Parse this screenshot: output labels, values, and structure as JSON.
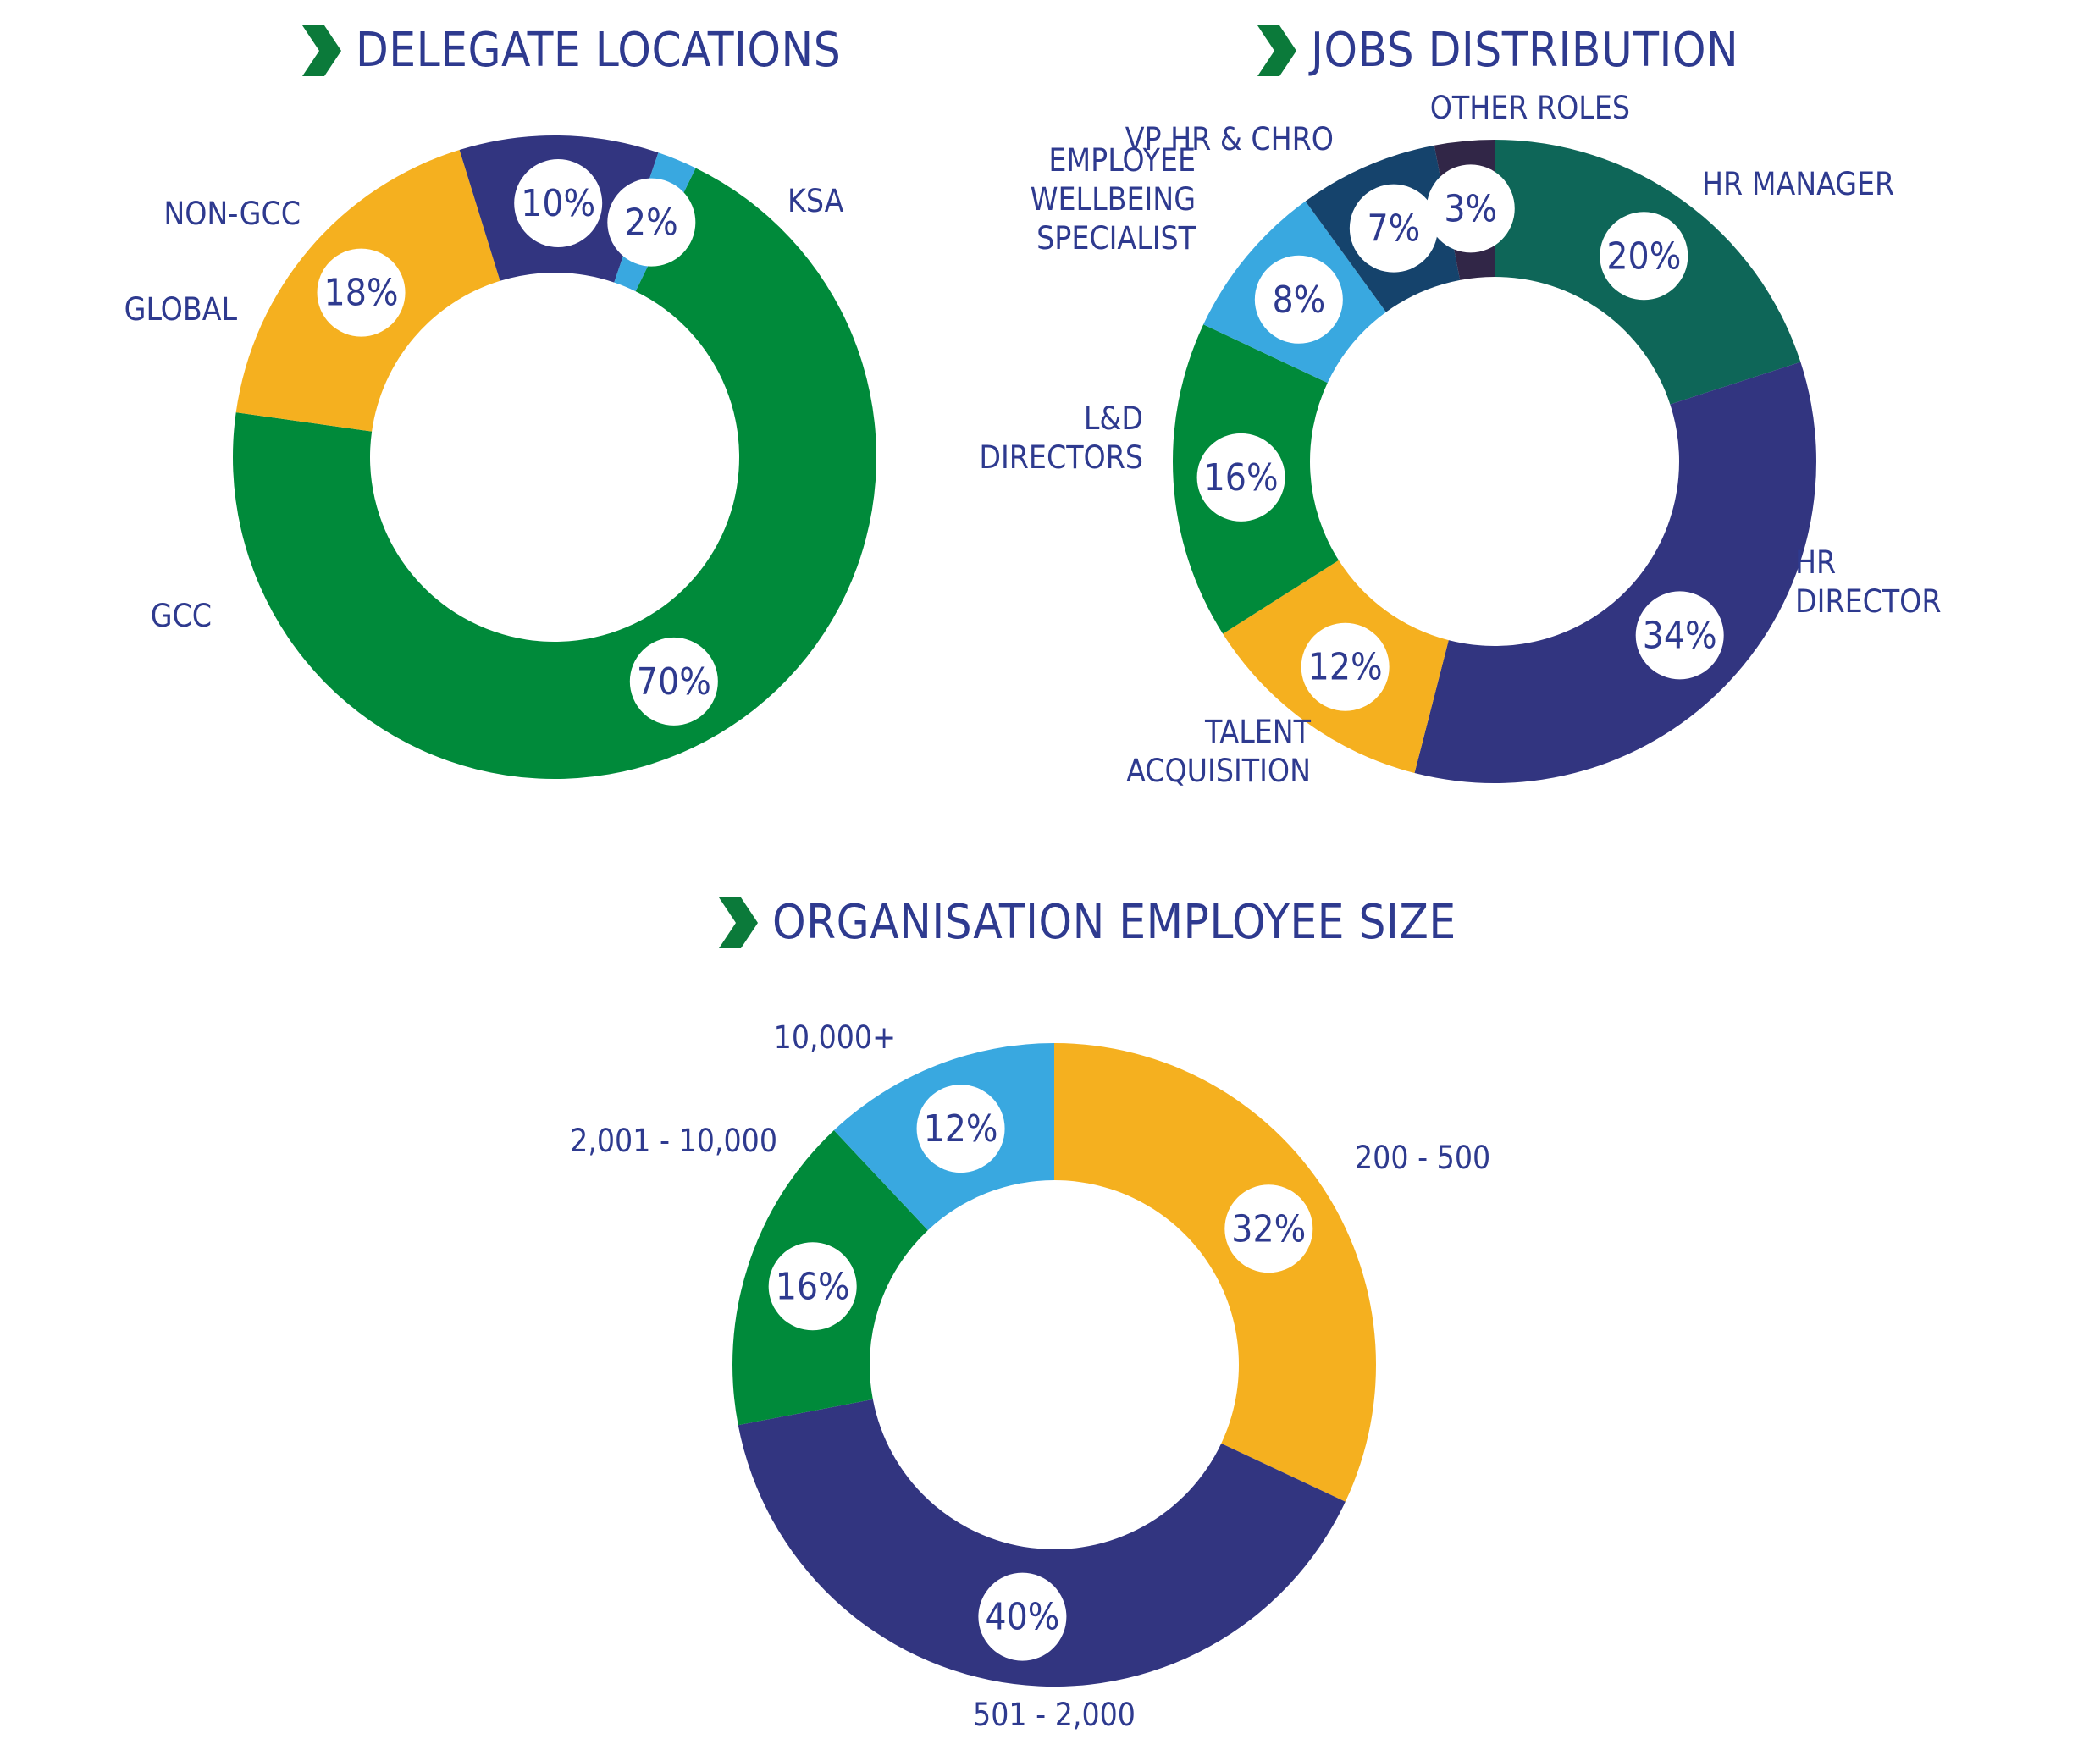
{
  "colors": {
    "title_text": "#2e3a8f",
    "label_text": "#2e3a8f",
    "chevron": "#0b7a3a",
    "badge_fill": "#ffffff",
    "green": "#008a3a",
    "light_blue": "#39a8e0",
    "navy": "#323580",
    "yellow": "#f5b01f",
    "teal": "#0e6658",
    "dark_navy": "#15436c",
    "plum": "#312647"
  },
  "chart_data": [
    {
      "type": "pie",
      "title": "DELEGATE LOCATIONS",
      "slices": [
        {
          "label": "KSA",
          "value": 70,
          "pct_label": "70%",
          "color": "#008a3a"
        },
        {
          "label": "GCC",
          "value": 18,
          "pct_label": "18%",
          "color": "#f5b01f"
        },
        {
          "label": "GLOBAL",
          "value": 10,
          "pct_label": "10%",
          "color": "#323580"
        },
        {
          "label": "NON-GCC",
          "value": 2,
          "pct_label": "2%",
          "color": "#39a8e0"
        }
      ]
    },
    {
      "type": "pie",
      "title": "JOBS DISTRIBUTION",
      "slices": [
        {
          "label": "HR MANAGER",
          "value": 20,
          "pct_label": "20%",
          "color": "#0e6658"
        },
        {
          "label": "HR DIRECTOR",
          "value": 34,
          "pct_label": "34%",
          "color": "#323580"
        },
        {
          "label": "TALENT ACQUISITION",
          "value": 12,
          "pct_label": "12%",
          "color": "#f5b01f"
        },
        {
          "label": "L&D DIRECTORS",
          "value": 16,
          "pct_label": "16%",
          "color": "#008a3a"
        },
        {
          "label": "EMPLOYEE WELLBEING SPECIALIST",
          "value": 8,
          "pct_label": "8%",
          "color": "#39a8e0"
        },
        {
          "label": "VP HR & CHRO",
          "value": 7,
          "pct_label": "7%",
          "color": "#15436c"
        },
        {
          "label": "OTHER ROLES",
          "value": 3,
          "pct_label": "3%",
          "color": "#312647"
        }
      ]
    },
    {
      "type": "pie",
      "title": "ORGANISATION EMPLOYEE SIZE",
      "slices": [
        {
          "label": "200 - 500",
          "value": 32,
          "pct_label": "32%",
          "color": "#f5b01f"
        },
        {
          "label": "501 - 2,000",
          "value": 40,
          "pct_label": "40%",
          "color": "#323580"
        },
        {
          "label": "2,001 - 10,000",
          "value": 16,
          "pct_label": "16%",
          "color": "#008a3a"
        },
        {
          "label": "10,000+",
          "value": 12,
          "pct_label": "12%",
          "color": "#39a8e0"
        }
      ]
    }
  ]
}
